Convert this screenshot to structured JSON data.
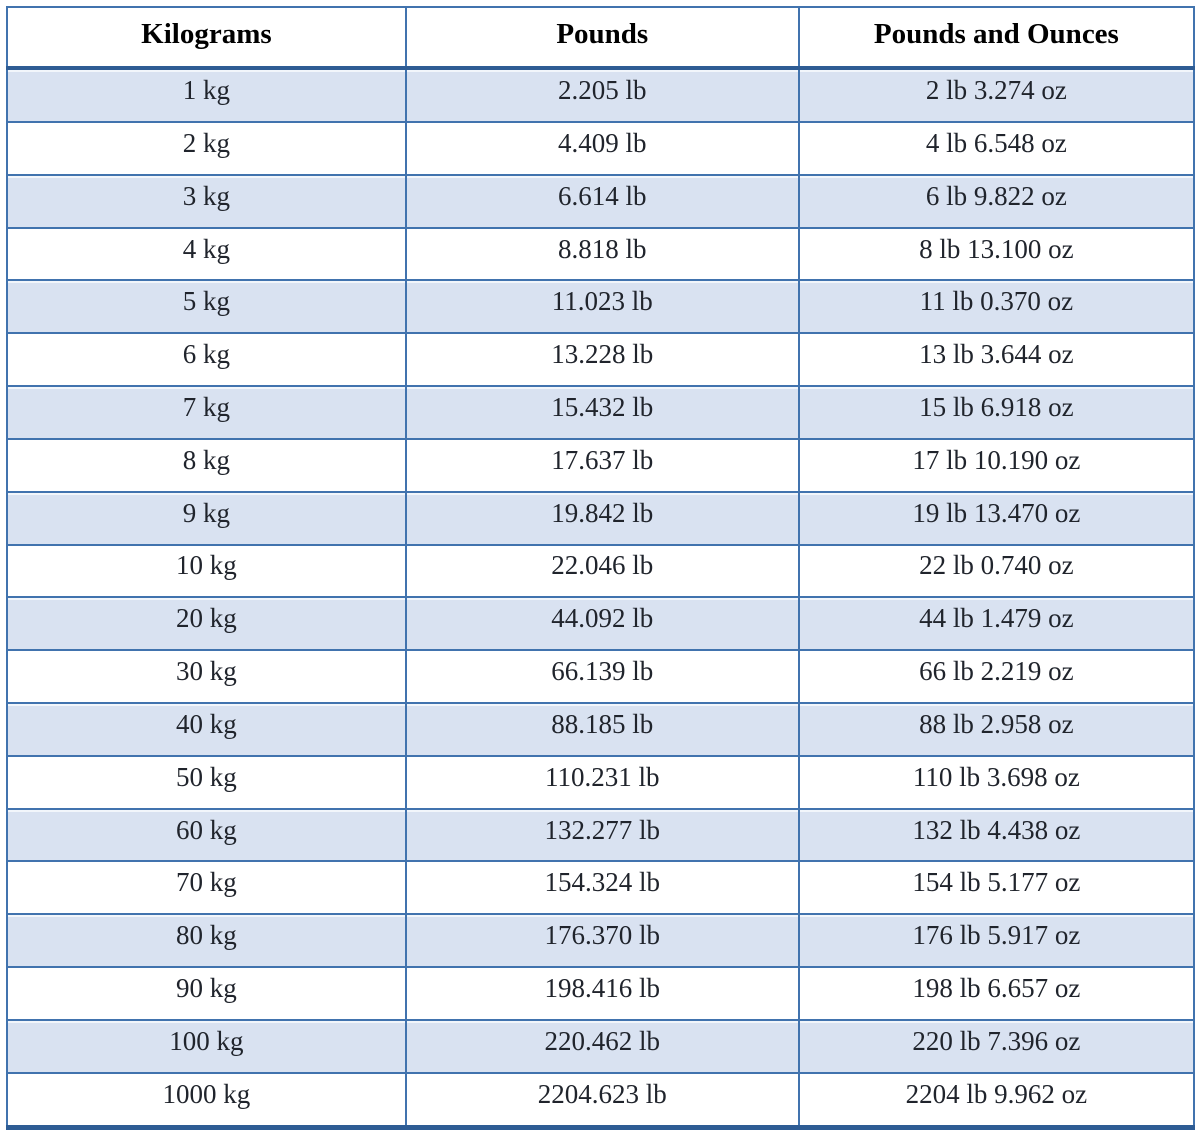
{
  "page": {
    "background_color": "#ffffff"
  },
  "table": {
    "title": "kilograms-to-pounds-conversion",
    "columns": [
      "Kilograms",
      "Pounds",
      "Pounds and Ounces"
    ],
    "rows": [
      [
        "1 kg",
        "2.205 lb",
        "2 lb 3.274 oz"
      ],
      [
        "2 kg",
        "4.409 lb",
        "4 lb 6.548 oz"
      ],
      [
        "3 kg",
        "6.614 lb",
        "6 lb 9.822 oz"
      ],
      [
        "4 kg",
        "8.818 lb",
        "8 lb 13.100 oz"
      ],
      [
        "5 kg",
        "11.023 lb",
        "11 lb 0.370 oz"
      ],
      [
        "6 kg",
        "13.228 lb",
        "13 lb 3.644 oz"
      ],
      [
        "7 kg",
        "15.432 lb",
        "15 lb 6.918 oz"
      ],
      [
        "8 kg",
        "17.637 lb",
        "17 lb 10.190 oz"
      ],
      [
        "9 kg",
        "19.842 lb",
        "19 lb 13.470 oz"
      ],
      [
        "10 kg",
        "22.046 lb",
        "22 lb 0.740 oz"
      ],
      [
        "20 kg",
        "44.092 lb",
        "44 lb 1.479 oz"
      ],
      [
        "30 kg",
        "66.139 lb",
        "66 lb 2.219 oz"
      ],
      [
        "40 kg",
        "88.185 lb",
        "88 lb 2.958 oz"
      ],
      [
        "50 kg",
        "110.231 lb",
        "110 lb 3.698 oz"
      ],
      [
        "60 kg",
        "132.277 lb",
        "132 lb 4.438 oz"
      ],
      [
        "70 kg",
        "154.324 lb",
        "154 lb 5.177 oz"
      ],
      [
        "80 kg",
        "176.370 lb",
        "176 lb 5.917 oz"
      ],
      [
        "90 kg",
        "198.416 lb",
        "198 lb 6.657 oz"
      ],
      [
        "100 kg",
        "220.462 lb",
        "220 lb 7.396 oz"
      ],
      [
        "1000 kg",
        "2204.623 lb",
        "2204 lb 9.962 oz"
      ]
    ],
    "striping": "odd data rows shaded, even rows white",
    "colors": {
      "row_shade": "#d9e2f1",
      "row_plain": "#ffffff",
      "grid_border": "#4173ae",
      "heavy_border": "#2e5c94",
      "header_text": "#000000",
      "cell_text": "#20242c"
    }
  }
}
